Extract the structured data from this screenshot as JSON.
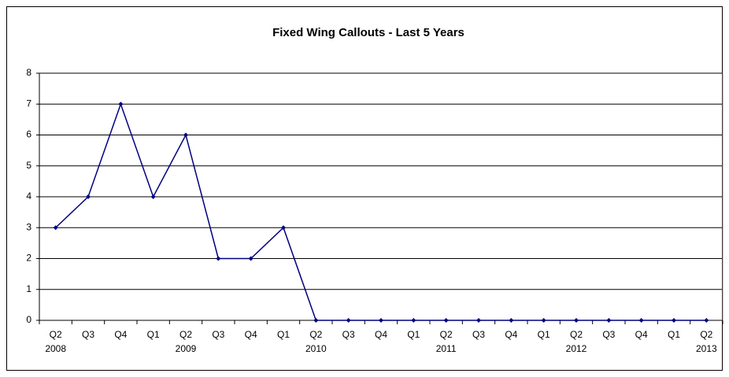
{
  "chart_data": {
    "type": "line",
    "title": "Fixed Wing Callouts - Last 5 Years",
    "categories": [
      "Q2",
      "Q3",
      "Q4",
      "Q1",
      "Q2",
      "Q3",
      "Q4",
      "Q1",
      "Q2",
      "Q3",
      "Q4",
      "Q1",
      "Q2",
      "Q3",
      "Q4",
      "Q1",
      "Q2",
      "Q3",
      "Q4",
      "Q1",
      "Q2"
    ],
    "years": [
      "2008",
      null,
      null,
      null,
      "2009",
      null,
      null,
      null,
      "2010",
      null,
      null,
      null,
      "2011",
      null,
      null,
      null,
      "2012",
      null,
      null,
      null,
      "2013"
    ],
    "values": [
      3,
      4,
      7,
      4,
      6,
      2,
      2,
      3,
      0,
      0,
      0,
      0,
      0,
      0,
      0,
      0,
      0,
      0,
      0,
      0,
      0
    ],
    "color": "#000080",
    "ylim": [
      0,
      8
    ],
    "yticks": [
      0,
      1,
      2,
      3,
      4,
      5,
      6,
      7,
      8
    ],
    "grid": true
  }
}
